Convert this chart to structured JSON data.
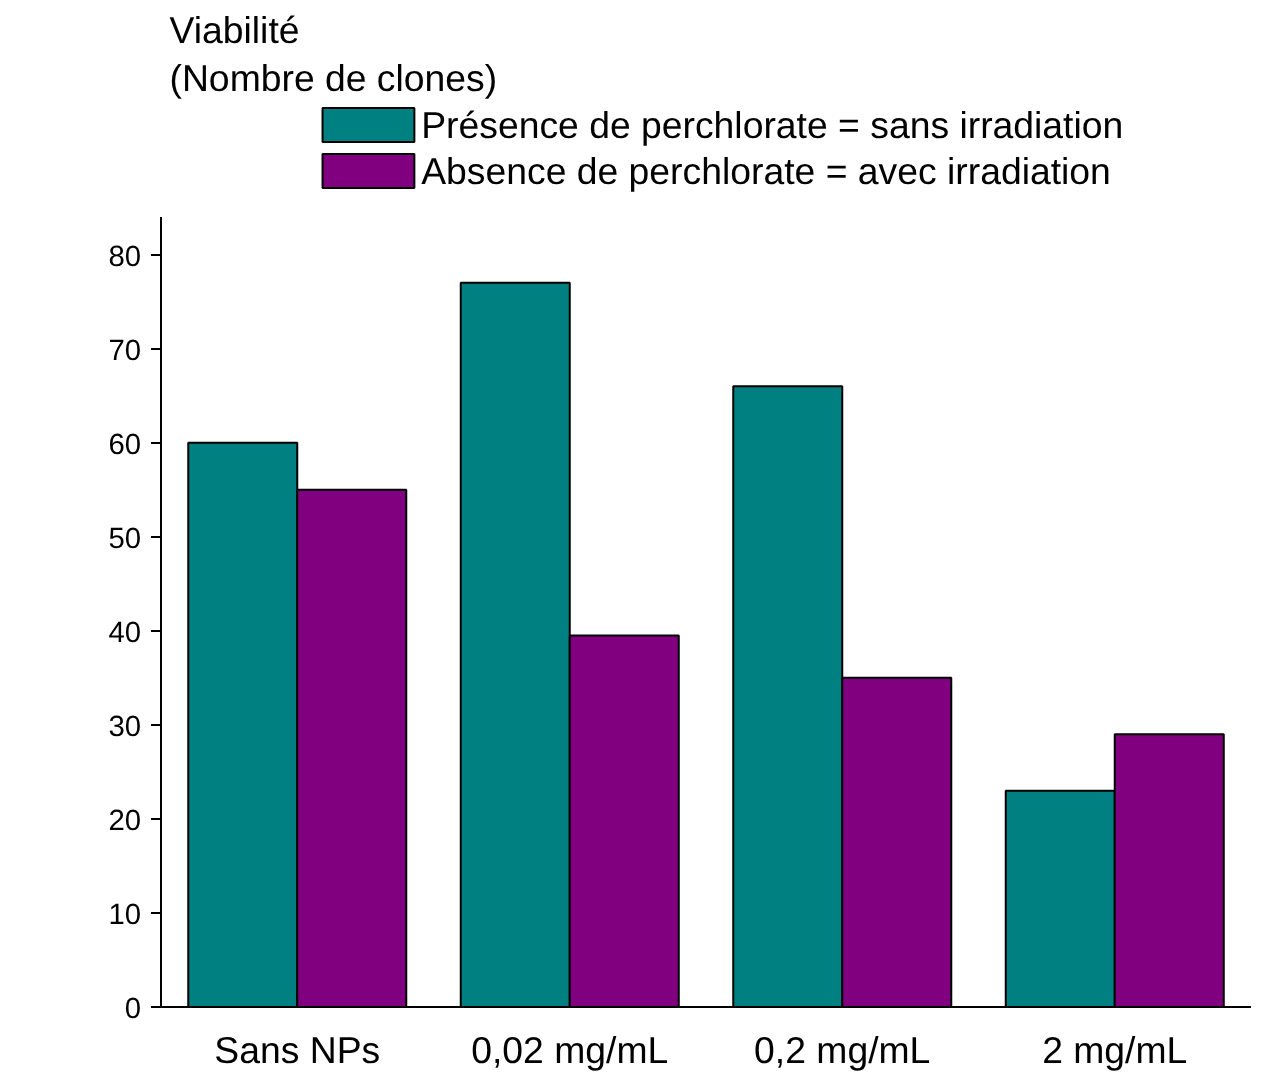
{
  "chart_data": {
    "type": "bar",
    "ylabel": "Viabilité\n(Nombre de clones)",
    "categories": [
      "Sans NPs",
      "0,02 mg/mL",
      "0,2 mg/mL",
      "2 mg/mL"
    ],
    "series": [
      {
        "name": "Présence de perchlorate = sans irradiation",
        "color": "#008080",
        "values": [
          60,
          77,
          66,
          23
        ]
      },
      {
        "name": "Absence de perchlorate = avec irradiation",
        "color": "#800080",
        "values": [
          55,
          39.5,
          35,
          29
        ]
      }
    ],
    "ylim": [
      0,
      84
    ],
    "yticks": [
      0,
      10,
      20,
      30,
      40,
      50,
      60,
      70,
      80
    ],
    "grid": false,
    "legend": "top right"
  }
}
